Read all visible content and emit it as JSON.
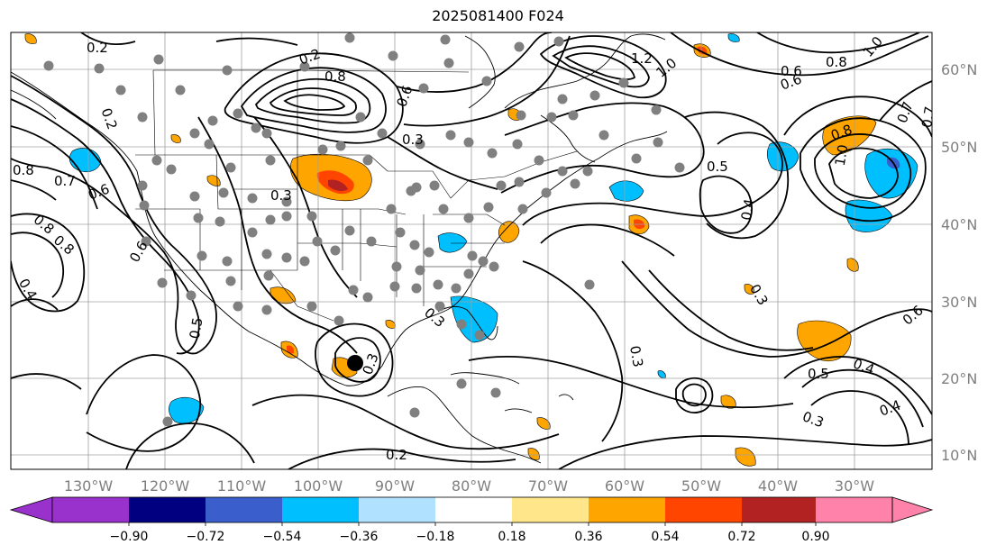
{
  "title": "2025081400 F024",
  "map": {
    "lon_labels": [
      "130°W",
      "120°W",
      "110°W",
      "100°W",
      "90°W",
      "80°W",
      "70°W",
      "60°W",
      "50°W",
      "40°W",
      "30°W"
    ],
    "lat_labels": [
      "60°N",
      "50°N",
      "40°N",
      "30°N",
      "20°N",
      "10°N"
    ],
    "contour_labels": [
      "0.2",
      "0.2",
      "0.8",
      "0.6",
      "0.3",
      "1.2",
      "1.0",
      "0.8",
      "0.6",
      "1.0",
      "0.7",
      "0.8",
      "0.7",
      "0.6",
      "0.8",
      "0.5",
      "0.4",
      "0.8",
      "1.0",
      "0.7",
      "0.6",
      "0.3",
      "0.6",
      "0.8",
      "0.4",
      "0.5",
      "0.3",
      "0.3",
      "0.6",
      "0.3",
      "0.3",
      "0.5",
      "0.4",
      "0.4",
      "0.3",
      "0.2",
      "0.2"
    ],
    "colors": {
      "contour": "#000000",
      "observation_dots": "#808080",
      "marker": "#000000",
      "coastline": "#000000",
      "grid": "#a0a0a0"
    }
  },
  "colorbar": {
    "ticks": [
      "−0.90",
      "−0.72",
      "−0.54",
      "−0.36",
      "−0.18",
      "0.18",
      "0.36",
      "0.54",
      "0.72",
      "0.90"
    ],
    "colors": [
      "#9932cc",
      "#000080",
      "#3a5fcd",
      "#00bfff",
      "#b0e2ff",
      "#ffffff",
      "#ffe68a",
      "#ffa500",
      "#ff4500",
      "#b22222",
      "#ff82ab"
    ]
  }
}
